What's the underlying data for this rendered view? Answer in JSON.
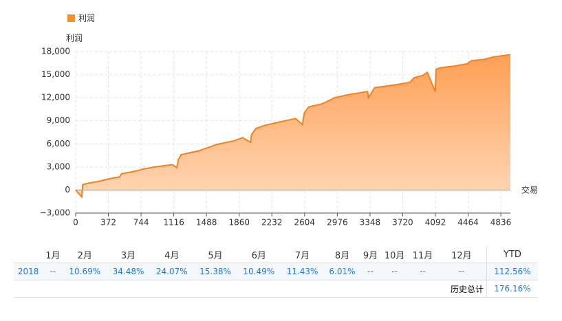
{
  "chart_data": {
    "type": "area",
    "legend": "利润",
    "y_label": "利润",
    "x_label": "交易",
    "color": "#f5801e",
    "x": [
      0,
      70,
      80,
      150,
      250,
      400,
      500,
      520,
      700,
      760,
      900,
      1100,
      1150,
      1170,
      1200,
      1400,
      1500,
      1600,
      1800,
      1900,
      1990,
      2000,
      2050,
      2150,
      2300,
      2500,
      2580,
      2600,
      2650,
      2800,
      2950,
      3100,
      3320,
      3330,
      3400,
      3650,
      3800,
      3850,
      3950,
      4000,
      4090,
      4100,
      4150,
      4300,
      4450,
      4500,
      4650,
      4750,
      4945
    ],
    "values": [
      0,
      -900,
      700,
      900,
      1100,
      1500,
      1700,
      2100,
      2500,
      2700,
      3000,
      3300,
      2900,
      4000,
      4600,
      5100,
      5500,
      5900,
      6400,
      6800,
      6200,
      7200,
      8000,
      8400,
      8800,
      9300,
      8500,
      10000,
      10800,
      11200,
      12000,
      12400,
      12800,
      12000,
      13300,
      13700,
      14000,
      14600,
      14900,
      15300,
      12800,
      15700,
      15900,
      16100,
      16400,
      16800,
      17000,
      17300,
      17600
    ],
    "xlim": [
      0,
      4945
    ],
    "xticks": [
      0,
      372,
      744,
      1116,
      1488,
      1860,
      2232,
      2604,
      2976,
      3348,
      3720,
      4092,
      4464,
      4836
    ],
    "ylim": [
      -3000,
      18000
    ],
    "yticks": [
      {
        "value": -3000,
        "label": "−3,000"
      },
      0,
      {
        "value": 3000,
        "label": "3,000"
      },
      {
        "value": 6000,
        "label": "6,000"
      },
      {
        "value": 9000,
        "label": "9,000"
      },
      {
        "value": 12000,
        "label": "12,000"
      },
      {
        "value": 15000,
        "label": "15,000"
      },
      {
        "value": 18000,
        "label": "18,000"
      }
    ],
    "grid": true
  },
  "table": {
    "header": [
      "1月",
      "2月",
      "3月",
      "4月",
      "5月",
      "6月",
      "7月",
      "8月",
      "9月",
      "10月",
      "11月",
      "12月",
      "YTD"
    ],
    "rows": [
      [
        "2018",
        "--",
        "10.69%",
        "34.48%",
        "24.07%",
        "15.38%",
        "10.49%",
        "11.43%",
        "6.01%",
        "--",
        "--",
        "--",
        "--",
        "112.56%"
      ]
    ],
    "total_label": "历史总计",
    "total_value": "176.16%"
  }
}
